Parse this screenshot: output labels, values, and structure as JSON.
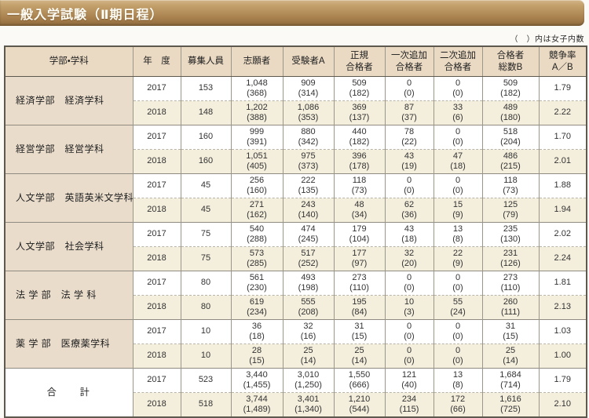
{
  "page": {
    "title": "一般入学試験（Ⅱ期日程）",
    "note": "（　）内は女子内数"
  },
  "table": {
    "headers": {
      "faculty": "学部・学科",
      "year": "年　度",
      "capacity": "募集人員",
      "applicants": "志願者",
      "examinees": "受験者A",
      "regular": "正規\n合格者",
      "add1": "一次追加\n合格者",
      "add2": "二次追加\n合格者",
      "total_b": "合格者\n総数B",
      "rate": "競争率\nA／B"
    },
    "groups": [
      {
        "faculty": "経済学部　経済学科",
        "rows": [
          {
            "year": "2017",
            "capacity": "153",
            "applicants": "1,048\n(368)",
            "examinees": "909\n(314)",
            "regular": "509\n(182)",
            "add1": "0\n(0)",
            "add2": "0\n(0)",
            "total_b": "509\n(182)",
            "rate": "1.79"
          },
          {
            "year": "2018",
            "capacity": "148",
            "applicants": "1,202\n(388)",
            "examinees": "1,086\n(353)",
            "regular": "369\n(137)",
            "add1": "87\n(37)",
            "add2": "33\n(6)",
            "total_b": "489\n(180)",
            "rate": "2.22"
          }
        ]
      },
      {
        "faculty": "経営学部　経営学科",
        "rows": [
          {
            "year": "2017",
            "capacity": "160",
            "applicants": "999\n(391)",
            "examinees": "880\n(342)",
            "regular": "440\n(182)",
            "add1": "78\n(22)",
            "add2": "0\n(0)",
            "total_b": "518\n(204)",
            "rate": "1.70"
          },
          {
            "year": "2018",
            "capacity": "160",
            "applicants": "1,051\n(405)",
            "examinees": "975\n(373)",
            "regular": "396\n(178)",
            "add1": "43\n(19)",
            "add2": "47\n(18)",
            "total_b": "486\n(215)",
            "rate": "2.01"
          }
        ]
      },
      {
        "faculty": "人文学部　英語英米文学科",
        "rows": [
          {
            "year": "2017",
            "capacity": "45",
            "applicants": "256\n(160)",
            "examinees": "222\n(135)",
            "regular": "118\n(73)",
            "add1": "0\n(0)",
            "add2": "0\n(0)",
            "total_b": "118\n(73)",
            "rate": "1.88"
          },
          {
            "year": "2018",
            "capacity": "45",
            "applicants": "271\n(162)",
            "examinees": "243\n(140)",
            "regular": "48\n(34)",
            "add1": "62\n(36)",
            "add2": "15\n(9)",
            "total_b": "125\n(79)",
            "rate": "1.94"
          }
        ]
      },
      {
        "faculty": "人文学部　社会学科",
        "rows": [
          {
            "year": "2017",
            "capacity": "75",
            "applicants": "540\n(288)",
            "examinees": "474\n(245)",
            "regular": "179\n(104)",
            "add1": "43\n(18)",
            "add2": "13\n(8)",
            "total_b": "235\n(130)",
            "rate": "2.02"
          },
          {
            "year": "2018",
            "capacity": "75",
            "applicants": "573\n(285)",
            "examinees": "517\n(252)",
            "regular": "177\n(97)",
            "add1": "32\n(20)",
            "add2": "22\n(9)",
            "total_b": "231\n(126)",
            "rate": "2.24"
          }
        ]
      },
      {
        "faculty": "法 学 部　法 学 科",
        "rows": [
          {
            "year": "2017",
            "capacity": "80",
            "applicants": "561\n(230)",
            "examinees": "493\n(198)",
            "regular": "273\n(110)",
            "add1": "0\n(0)",
            "add2": "0\n(0)",
            "total_b": "273\n(110)",
            "rate": "1.81"
          },
          {
            "year": "2018",
            "capacity": "80",
            "applicants": "619\n(234)",
            "examinees": "555\n(208)",
            "regular": "195\n(84)",
            "add1": "10\n(3)",
            "add2": "55\n(24)",
            "total_b": "260\n(111)",
            "rate": "2.13"
          }
        ]
      },
      {
        "faculty": "薬 学 部　医療薬学科",
        "rows": [
          {
            "year": "2017",
            "capacity": "10",
            "applicants": "36\n(18)",
            "examinees": "32\n(16)",
            "regular": "31\n(15)",
            "add1": "0\n(0)",
            "add2": "0\n(0)",
            "total_b": "31\n(15)",
            "rate": "1.03"
          },
          {
            "year": "2018",
            "capacity": "10",
            "applicants": "28\n(15)",
            "examinees": "25\n(14)",
            "regular": "25\n(14)",
            "add1": "0\n(0)",
            "add2": "0\n(0)",
            "total_b": "25\n(14)",
            "rate": "1.00"
          }
        ]
      },
      {
        "faculty": "合　　計",
        "is_total": true,
        "rows": [
          {
            "year": "2017",
            "capacity": "523",
            "applicants": "3,440\n(1,455)",
            "examinees": "3,010\n(1,250)",
            "regular": "1,550\n(666)",
            "add1": "121\n(40)",
            "add2": "13\n(8)",
            "total_b": "1,684\n(714)",
            "rate": "1.79"
          },
          {
            "year": "2018",
            "capacity": "518",
            "applicants": "3,744\n(1,489)",
            "examinees": "3,401\n(1,340)",
            "regular": "1,210\n(544)",
            "add1": "234\n(115)",
            "add2": "172\n(66)",
            "total_b": "1,616\n(725)",
            "rate": "2.10"
          }
        ]
      }
    ]
  },
  "colors": {
    "bar_top": "#d2b587",
    "bar_bottom": "#8d6a3c",
    "header_bg": "#ebdac3",
    "faculty_bg": "#e9dccb",
    "alt_row_bg": "#f4eedc",
    "border_dark": "#5d594f"
  }
}
